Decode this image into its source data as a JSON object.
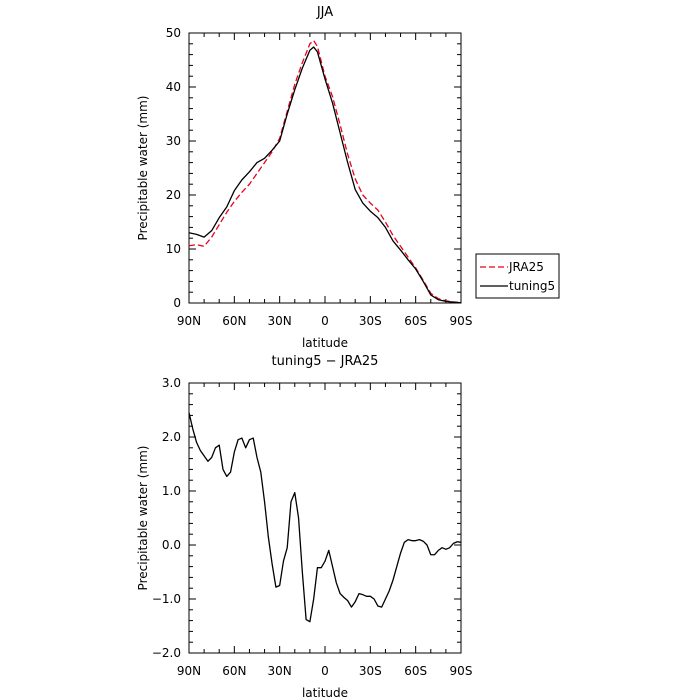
{
  "chart_data": [
    {
      "type": "line",
      "title": "JJA",
      "xlabel": "latitude",
      "ylabel": "Precipitable water (mm)",
      "xlim": [
        90,
        -90
      ],
      "ylim": [
        0,
        50
      ],
      "xticks": [
        {
          "v": 90,
          "label": "90N"
        },
        {
          "v": 60,
          "label": "60N"
        },
        {
          "v": 30,
          "label": "30N"
        },
        {
          "v": 0,
          "label": "0"
        },
        {
          "v": -30,
          "label": "30S"
        },
        {
          "v": -60,
          "label": "60S"
        },
        {
          "v": -90,
          "label": "90S"
        }
      ],
      "yticks": [
        {
          "v": 0,
          "label": "0"
        },
        {
          "v": 10,
          "label": "10"
        },
        {
          "v": 20,
          "label": "20"
        },
        {
          "v": 30,
          "label": "30"
        },
        {
          "v": 40,
          "label": "40"
        },
        {
          "v": 50,
          "label": "50"
        }
      ],
      "legend_position": "right",
      "series": [
        {
          "name": "JRA25",
          "color": "#e8001c",
          "dash": true,
          "x": [
            90,
            85,
            80,
            75,
            70,
            65,
            60,
            55,
            50,
            45,
            40,
            35,
            30,
            25,
            20,
            15,
            10,
            7.5,
            5,
            0,
            -5,
            -10,
            -15,
            -20,
            -25,
            -30,
            -35,
            -40,
            -45,
            -50,
            -55,
            -60,
            -65,
            -70,
            -75,
            -80,
            -85,
            -90
          ],
          "y": [
            10.6,
            10.8,
            10.5,
            12.2,
            14.5,
            16.8,
            18.8,
            20.5,
            22.0,
            24.0,
            26.0,
            28.0,
            30.5,
            35.5,
            40.5,
            44.5,
            48.0,
            48.6,
            47.5,
            42.0,
            38.2,
            33.0,
            27.5,
            23.0,
            20.0,
            18.5,
            17.2,
            15.0,
            12.5,
            10.5,
            8.5,
            6.5,
            4.2,
            1.8,
            0.8,
            0.4,
            0.2,
            0.05
          ]
        },
        {
          "name": "tuning5",
          "color": "#000000",
          "dash": false,
          "x": [
            90,
            85,
            80,
            75,
            70,
            65,
            60,
            55,
            50,
            45,
            40,
            35,
            30,
            25,
            20,
            15,
            10,
            7.5,
            5,
            0,
            -5,
            -10,
            -15,
            -20,
            -25,
            -30,
            -35,
            -40,
            -45,
            -50,
            -55,
            -60,
            -65,
            -70,
            -75,
            -80,
            -85,
            -90
          ],
          "y": [
            13.0,
            12.7,
            12.2,
            13.4,
            15.8,
            17.8,
            20.8,
            22.8,
            24.3,
            26.0,
            26.8,
            28.3,
            30.0,
            35.0,
            39.5,
            43.5,
            46.8,
            47.4,
            46.5,
            41.5,
            37.0,
            31.5,
            26.0,
            21.0,
            18.5,
            17.0,
            15.8,
            14.0,
            11.5,
            9.8,
            8.0,
            6.3,
            4.0,
            1.5,
            0.6,
            0.3,
            0.15,
            0.05
          ]
        }
      ]
    },
    {
      "type": "line",
      "title": "tuning5 − JRA25",
      "xlabel": "latitude",
      "ylabel": "Precipitable water (mm)",
      "xlim": [
        90,
        -90
      ],
      "ylim": [
        -2.0,
        3.0
      ],
      "xticks": [
        {
          "v": 90,
          "label": "90N"
        },
        {
          "v": 60,
          "label": "60N"
        },
        {
          "v": 30,
          "label": "30N"
        },
        {
          "v": 0,
          "label": "0"
        },
        {
          "v": -30,
          "label": "30S"
        },
        {
          "v": -60,
          "label": "60S"
        },
        {
          "v": -90,
          "label": "90S"
        }
      ],
      "yticks": [
        {
          "v": 3.0,
          "label": "3.0"
        },
        {
          "v": 2.0,
          "label": "2.0"
        },
        {
          "v": 1.0,
          "label": "1.0"
        },
        {
          "v": 0.0,
          "label": "0.0"
        },
        {
          "v": -1.0,
          "label": "−1.0"
        },
        {
          "v": -2.0,
          "label": "−2.0"
        }
      ],
      "series": [
        {
          "color": "#000000",
          "dash": false,
          "x": [
            90,
            87.5,
            85,
            82.5,
            80,
            77.5,
            75,
            72.5,
            70,
            67.5,
            65,
            62.5,
            60,
            57.5,
            55,
            52.5,
            50,
            47.5,
            45,
            42.5,
            40,
            37.5,
            35,
            32.5,
            30,
            27.5,
            25,
            22.5,
            20,
            17.5,
            15,
            12.5,
            10,
            7.5,
            5,
            2.5,
            0,
            -2.5,
            -5,
            -7.5,
            -10,
            -12.5,
            -15,
            -17.5,
            -20,
            -22.5,
            -25,
            -27.5,
            -30,
            -32.5,
            -35,
            -37.5,
            -40,
            -42.5,
            -45,
            -47.5,
            -50,
            -52.5,
            -55,
            -57.5,
            -60,
            -62.5,
            -65,
            -67.5,
            -70,
            -72.5,
            -75,
            -77.5,
            -80,
            -82.5,
            -85,
            -87.5,
            -90
          ],
          "y": [
            2.45,
            2.15,
            1.9,
            1.75,
            1.65,
            1.55,
            1.62,
            1.8,
            1.85,
            1.4,
            1.27,
            1.35,
            1.72,
            1.95,
            1.98,
            1.8,
            1.95,
            1.98,
            1.62,
            1.35,
            0.8,
            0.15,
            -0.35,
            -0.78,
            -0.75,
            -0.3,
            -0.05,
            0.8,
            0.97,
            0.5,
            -0.5,
            -1.38,
            -1.42,
            -1.0,
            -0.42,
            -0.42,
            -0.3,
            -0.1,
            -0.4,
            -0.7,
            -0.9,
            -0.97,
            -1.03,
            -1.15,
            -1.05,
            -0.9,
            -0.92,
            -0.95,
            -0.95,
            -1.0,
            -1.13,
            -1.15,
            -1.0,
            -0.85,
            -0.65,
            -0.4,
            -0.15,
            0.05,
            0.1,
            0.08,
            0.08,
            0.1,
            0.07,
            0.0,
            -0.18,
            -0.18,
            -0.1,
            -0.05,
            -0.08,
            -0.05,
            0.03,
            0.06,
            0.05
          ]
        }
      ]
    }
  ]
}
